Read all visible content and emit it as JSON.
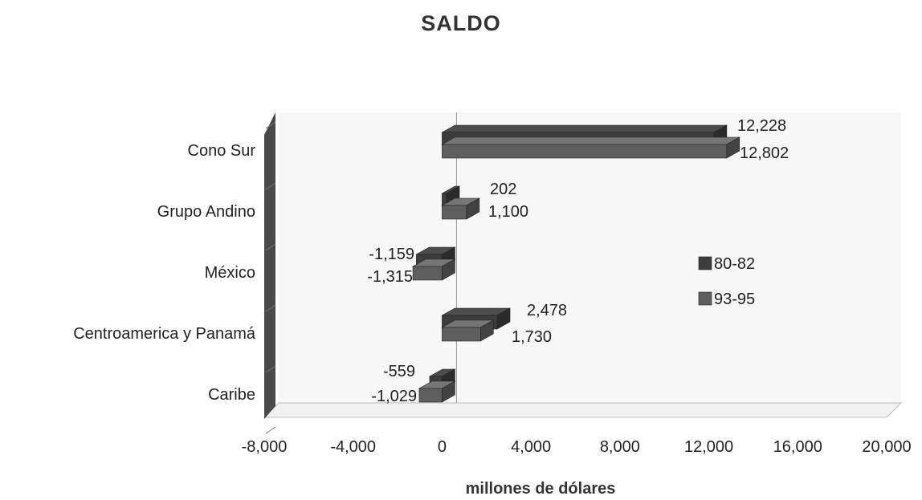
{
  "chart_data": {
    "type": "bar",
    "orientation": "horizontal",
    "title": "SALDO",
    "xlabel": "millones de dólares",
    "ylabel": "",
    "categories": [
      "Cono Sur",
      "Grupo Andino",
      "México",
      "Centroamerica y Panamá",
      "Caribe"
    ],
    "series": [
      {
        "name": "80-82",
        "values": [
          12228,
          202,
          -1159,
          2478,
          -559
        ],
        "color": "#3d3d3d"
      },
      {
        "name": "93-95",
        "values": [
          12802,
          1100,
          -1315,
          1730,
          -1029
        ],
        "color": "#5e5e5e"
      }
    ],
    "data_labels": [
      [
        "12,228",
        "202",
        "-1,159",
        "2,478",
        "-559"
      ],
      [
        "12,802",
        "1,100",
        "-1,315",
        "1,730",
        "-1,029"
      ]
    ],
    "xlim": [
      -8000,
      20000
    ],
    "xticks": [
      -8000,
      -4000,
      0,
      4000,
      8000,
      12000,
      16000,
      20000
    ],
    "xtick_labels": [
      "-8,000",
      "-4,000",
      "0",
      "4,000",
      "8,000",
      "12,000",
      "16,000",
      "20,000"
    ],
    "legend_position": "right",
    "three_d": true,
    "grid": false
  }
}
